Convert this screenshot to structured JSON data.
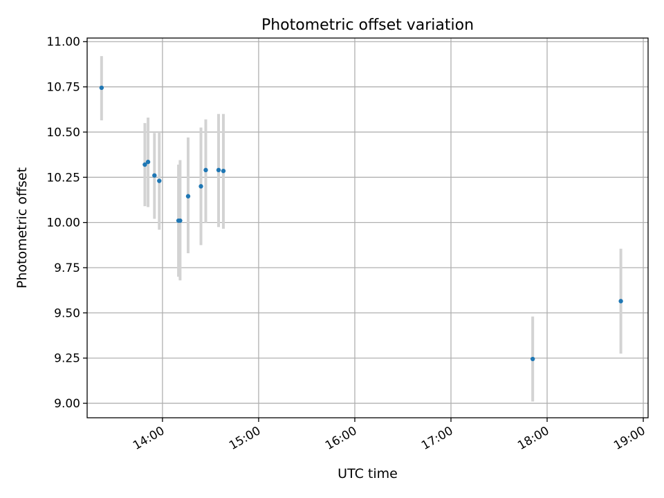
{
  "chart_data": {
    "type": "scatter",
    "title": "Photometric offset variation",
    "xlabel": "UTC time",
    "ylabel": "Photometric offset",
    "x_axis_kind": "time",
    "xlim": [
      "13:13",
      "19:03"
    ],
    "ylim": [
      8.92,
      11.02
    ],
    "y_ticks": [
      9.0,
      9.25,
      9.5,
      9.75,
      10.0,
      10.25,
      10.5,
      10.75,
      11.0
    ],
    "y_tick_labels": [
      "9.00",
      "9.25",
      "9.50",
      "9.75",
      "10.00",
      "10.25",
      "10.50",
      "10.75",
      "11.00"
    ],
    "x_ticks": [
      "14:00",
      "15:00",
      "16:00",
      "17:00",
      "18:00",
      "19:00"
    ],
    "x_tick_labels": [
      "14:00",
      "15:00",
      "16:00",
      "17:00",
      "18:00",
      "19:00"
    ],
    "grid": true,
    "colors": {
      "point": "#1f77b4",
      "errorbar": "#d3d3d3",
      "grid": "#b0b0b0"
    },
    "points": [
      {
        "x": "13:22",
        "y": 10.745,
        "ymin": 10.565,
        "ymax": 10.92
      },
      {
        "x": "13:49",
        "y": 10.32,
        "ymin": 10.09,
        "ymax": 10.55
      },
      {
        "x": "13:51",
        "y": 10.335,
        "ymin": 10.085,
        "ymax": 10.58
      },
      {
        "x": "13:55",
        "y": 10.26,
        "ymin": 10.02,
        "ymax": 10.495
      },
      {
        "x": "13:58",
        "y": 10.23,
        "ymin": 9.96,
        "ymax": 10.5
      },
      {
        "x": "14:10",
        "y": 10.01,
        "ymin": 9.7,
        "ymax": 10.32
      },
      {
        "x": "14:11",
        "y": 10.01,
        "ymin": 9.68,
        "ymax": 10.345
      },
      {
        "x": "14:16",
        "y": 10.145,
        "ymin": 9.83,
        "ymax": 10.47
      },
      {
        "x": "14:24",
        "y": 10.2,
        "ymin": 9.875,
        "ymax": 10.525
      },
      {
        "x": "14:27",
        "y": 10.29,
        "ymin": 10.0,
        "ymax": 10.57
      },
      {
        "x": "14:35",
        "y": 10.29,
        "ymin": 9.975,
        "ymax": 10.6
      },
      {
        "x": "14:38",
        "y": 10.285,
        "ymin": 9.965,
        "ymax": 10.6
      },
      {
        "x": "17:51",
        "y": 9.245,
        "ymin": 9.01,
        "ymax": 9.48
      },
      {
        "x": "18:46",
        "y": 9.565,
        "ymin": 9.275,
        "ymax": 9.855
      }
    ]
  }
}
